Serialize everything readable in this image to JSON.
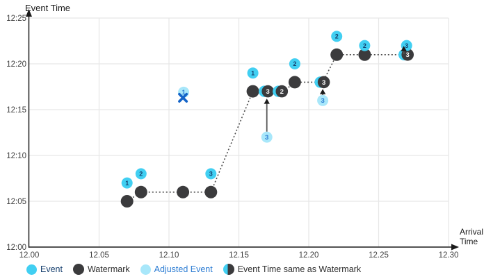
{
  "colors": {
    "event": "#41cff2",
    "watermark": "#3b3b3d",
    "adjusted_event": "#a8e7fa",
    "event_number_text": "#14406e",
    "adjusted_number_text": "#2b7cd3",
    "same_number_text": "#ffffff",
    "dropped_x": "#1464c8",
    "dotted_line": "#4d4d4d",
    "arrow": "#1a1a1a",
    "grid": "#e7e7e7",
    "axis": "#1a1a1a",
    "tick_text": "#404040"
  },
  "legend": {
    "items": [
      {
        "label": "Event",
        "type": "event"
      },
      {
        "label": "Watermark",
        "type": "watermark"
      },
      {
        "label": "Adjusted Event",
        "type": "adjusted"
      },
      {
        "label": "Event Time same as Watermark",
        "type": "same"
      }
    ]
  },
  "chart_data": {
    "type": "scatter",
    "title": "",
    "x_axis": {
      "label": "Arrival Time",
      "label_lines": [
        "Arrival",
        "Time"
      ],
      "ticks": [
        "12.00",
        "12.05",
        "12.10",
        "12.15",
        "12.20",
        "12.25",
        "12.30"
      ],
      "range": [
        12.0,
        12.3
      ],
      "grid": true
    },
    "y_axis": {
      "label": "Event Time",
      "ticks": [
        "12:00",
        "12:05",
        "12:10",
        "12:15",
        "12:20",
        "12:25"
      ],
      "range_minutes_after_1200": [
        0,
        25
      ],
      "grid": true
    },
    "watermark_line": [
      [
        12.07,
        5
      ],
      [
        12.08,
        6
      ],
      [
        12.13,
        6
      ],
      [
        12.16,
        17
      ],
      [
        12.182,
        17
      ],
      [
        12.19,
        18
      ],
      [
        12.21,
        18
      ],
      [
        12.22,
        21
      ],
      [
        12.272,
        21
      ]
    ],
    "watermarks": [
      {
        "arrival": 12.07,
        "event_min": 5,
        "event_time": "12:05"
      },
      {
        "arrival": 12.08,
        "event_min": 6,
        "event_time": "12:06"
      },
      {
        "arrival": 12.11,
        "event_min": 6,
        "event_time": "12:06"
      },
      {
        "arrival": 12.13,
        "event_min": 6,
        "event_time": "12:06"
      },
      {
        "arrival": 12.16,
        "event_min": 17,
        "event_time": "12:17"
      },
      {
        "arrival": 12.19,
        "event_min": 18,
        "event_time": "12:18"
      },
      {
        "arrival": 12.22,
        "event_min": 21,
        "event_time": "12:21"
      },
      {
        "arrival": 12.24,
        "event_min": 21,
        "event_time": "12:21"
      }
    ],
    "events": [
      {
        "label": "1",
        "arrival": 12.07,
        "event_min": 7,
        "event_time": "12:07"
      },
      {
        "label": "2",
        "arrival": 12.08,
        "event_min": 8,
        "event_time": "12:08"
      },
      {
        "label": "3",
        "arrival": 12.13,
        "event_min": 8,
        "event_time": "12:08"
      },
      {
        "label": "1",
        "arrival": 12.16,
        "event_min": 19,
        "event_time": "12:19"
      },
      {
        "label": "2",
        "arrival": 12.19,
        "event_min": 20,
        "event_time": "12:20"
      },
      {
        "label": "2",
        "arrival": 12.22,
        "event_min": 23,
        "event_time": "12:23"
      },
      {
        "label": "2",
        "arrival": 12.24,
        "event_min": 22,
        "event_time": "12:22"
      },
      {
        "label": "3",
        "arrival": 12.27,
        "event_min": 22,
        "event_time": "12:22"
      }
    ],
    "same_as_watermark": [
      {
        "label": "3",
        "arrival": 12.17,
        "event_min": 17,
        "event_time": "12:17"
      },
      {
        "label": "2",
        "arrival": 12.18,
        "event_min": 17,
        "event_time": "12:17"
      },
      {
        "label": "3",
        "arrival": 12.21,
        "event_min": 18,
        "event_time": "12:18"
      },
      {
        "label": "3",
        "arrival": 12.27,
        "event_min": 21,
        "event_time": "12:21"
      }
    ],
    "adjusted_events": [
      {
        "label": "3",
        "arrival": 12.17,
        "event_min": 12,
        "event_time": "12:12",
        "adjusted_to_min": 17
      },
      {
        "label": "3",
        "arrival": 12.21,
        "event_min": 16,
        "event_time": "12:16",
        "adjusted_to_min": 18
      }
    ],
    "dropped_event": {
      "label": "1",
      "arrival": 12.11,
      "event_min": 16.9,
      "x_marker_min": 16.3
    },
    "arrows": [
      {
        "x": 12.17,
        "from_min": 12.6,
        "to_min": 16.2
      },
      {
        "x": 12.21,
        "from_min": 16.6,
        "to_min": 17.25
      },
      {
        "x": 12.268,
        "from_min": 21.05,
        "to_min": 21.95
      }
    ]
  }
}
